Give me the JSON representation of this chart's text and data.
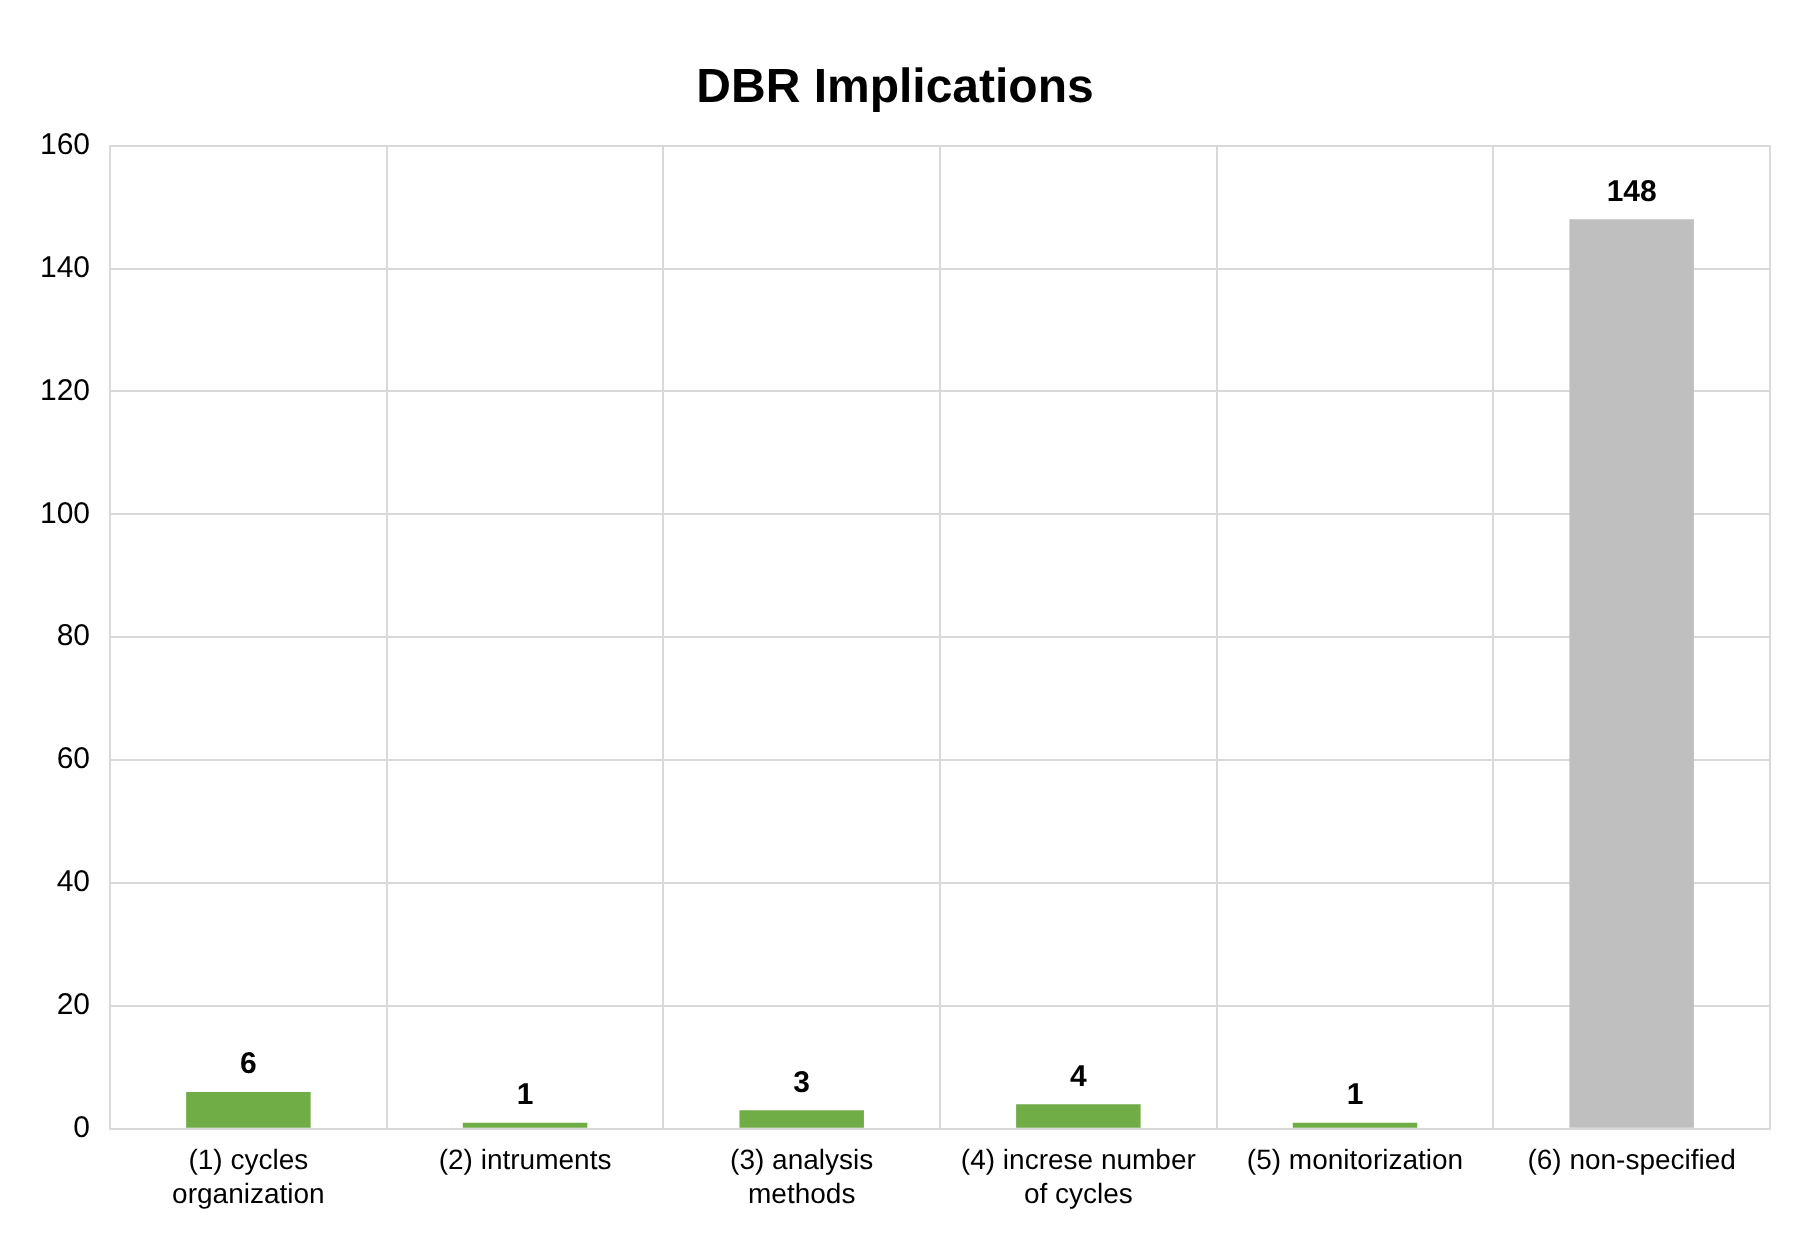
{
  "chart_data": {
    "type": "bar",
    "title": "DBR Implications",
    "categories": [
      "(1) cycles organization",
      "(2) intruments",
      "(3) analysis methods",
      "(4) increse number of cycles",
      "(5) monitorization",
      "(6) non-specified"
    ],
    "values": [
      6,
      1,
      3,
      4,
      1,
      148
    ],
    "colors": [
      "#70ad47",
      "#70ad47",
      "#70ad47",
      "#70ad47",
      "#70ad47",
      "#bfbfbf"
    ],
    "ylim": [
      0,
      160
    ],
    "yticks": [
      0,
      20,
      40,
      60,
      80,
      100,
      120,
      140,
      160
    ],
    "grid": true,
    "data_labels": true
  }
}
